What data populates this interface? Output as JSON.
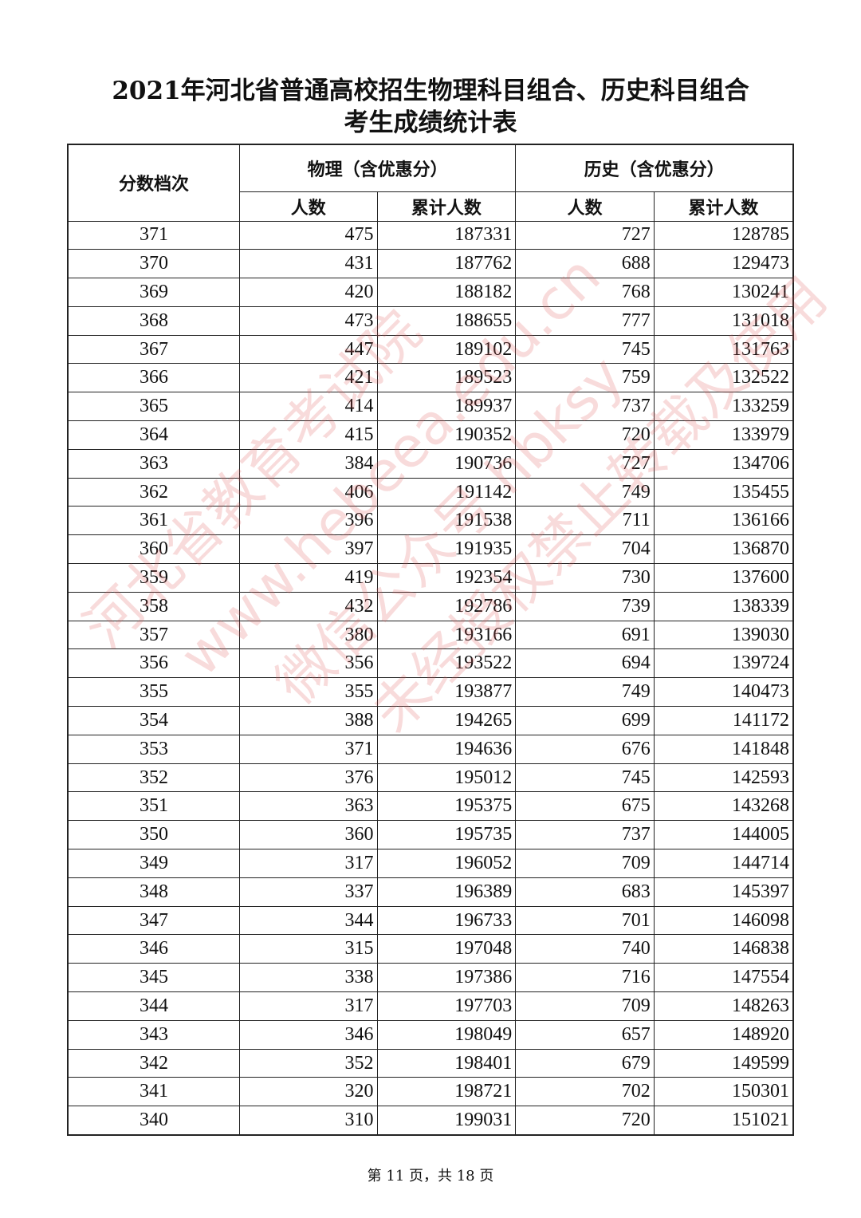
{
  "title_line1": "2021年河北省普通高校招生物理科目组合、历史科目组合",
  "title_line2": "考生成绩统计表",
  "table": {
    "header_score": "分数档次",
    "header_physics": "物理（含优惠分）",
    "header_history": "历史（含优惠分）",
    "sub_count": "人数",
    "sub_cumulative": "累计人数",
    "rows": [
      [
        "371",
        "475",
        "187331",
        "727",
        "128785"
      ],
      [
        "370",
        "431",
        "187762",
        "688",
        "129473"
      ],
      [
        "369",
        "420",
        "188182",
        "768",
        "130241"
      ],
      [
        "368",
        "473",
        "188655",
        "777",
        "131018"
      ],
      [
        "367",
        "447",
        "189102",
        "745",
        "131763"
      ],
      [
        "366",
        "421",
        "189523",
        "759",
        "132522"
      ],
      [
        "365",
        "414",
        "189937",
        "737",
        "133259"
      ],
      [
        "364",
        "415",
        "190352",
        "720",
        "133979"
      ],
      [
        "363",
        "384",
        "190736",
        "727",
        "134706"
      ],
      [
        "362",
        "406",
        "191142",
        "749",
        "135455"
      ],
      [
        "361",
        "396",
        "191538",
        "711",
        "136166"
      ],
      [
        "360",
        "397",
        "191935",
        "704",
        "136870"
      ],
      [
        "359",
        "419",
        "192354",
        "730",
        "137600"
      ],
      [
        "358",
        "432",
        "192786",
        "739",
        "138339"
      ],
      [
        "357",
        "380",
        "193166",
        "691",
        "139030"
      ],
      [
        "356",
        "356",
        "193522",
        "694",
        "139724"
      ],
      [
        "355",
        "355",
        "193877",
        "749",
        "140473"
      ],
      [
        "354",
        "388",
        "194265",
        "699",
        "141172"
      ],
      [
        "353",
        "371",
        "194636",
        "676",
        "141848"
      ],
      [
        "352",
        "376",
        "195012",
        "745",
        "142593"
      ],
      [
        "351",
        "363",
        "195375",
        "675",
        "143268"
      ],
      [
        "350",
        "360",
        "195735",
        "737",
        "144005"
      ],
      [
        "349",
        "317",
        "196052",
        "709",
        "144714"
      ],
      [
        "348",
        "337",
        "196389",
        "683",
        "145397"
      ],
      [
        "347",
        "344",
        "196733",
        "701",
        "146098"
      ],
      [
        "346",
        "315",
        "197048",
        "740",
        "146838"
      ],
      [
        "345",
        "338",
        "197386",
        "716",
        "147554"
      ],
      [
        "344",
        "317",
        "197703",
        "709",
        "148263"
      ],
      [
        "343",
        "346",
        "198049",
        "657",
        "148920"
      ],
      [
        "342",
        "352",
        "198401",
        "679",
        "149599"
      ],
      [
        "341",
        "320",
        "198721",
        "702",
        "150301"
      ],
      [
        "340",
        "310",
        "199031",
        "720",
        "151021"
      ]
    ]
  },
  "footer": "第 11 页，共 18 页",
  "watermark": [
    "河北省教育考试院",
    "www.hebeea.edu.cn",
    "微信公众号 hbksy",
    "未经授权禁止转载及使用"
  ],
  "watermark_color": "#e05a5a"
}
